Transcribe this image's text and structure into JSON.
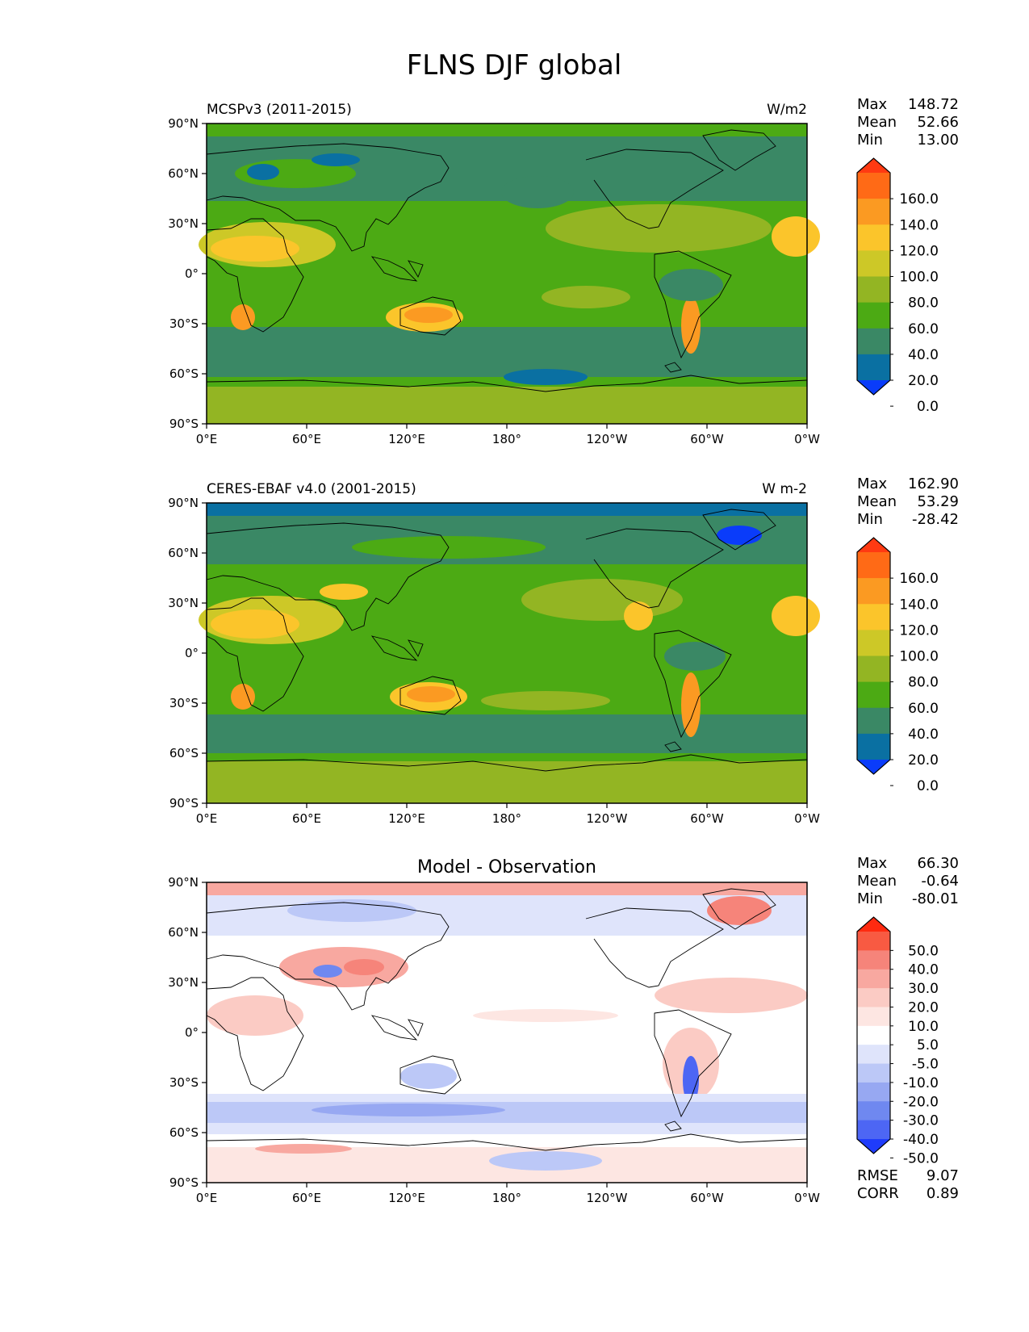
{
  "title": "FLNS DJF global",
  "axes": {
    "lat_ticks": [
      "90°N",
      "60°N",
      "30°N",
      "0°",
      "30°S",
      "60°S",
      "90°S"
    ],
    "lon_ticks": [
      "0°E",
      "60°E",
      "120°E",
      "180°",
      "120°W",
      "60°W",
      "0°W"
    ]
  },
  "panels": [
    {
      "left_title": "MCSPv3 (2011-2015)",
      "center_title": "",
      "units": "W/m2",
      "stats": [
        {
          "label": "Max",
          "value": "148.72"
        },
        {
          "label": "Mean",
          "value": "52.66"
        },
        {
          "label": "Min",
          "value": "13.00"
        }
      ],
      "colorbar": {
        "labels": [
          "160.0",
          "140.0",
          "120.0",
          "100.0",
          "80.0",
          "60.0",
          "40.0",
          "20.0",
          "0.0"
        ],
        "colors": [
          "#ff3a12",
          "#ff6a16",
          "#fb9a22",
          "#fbc52b",
          "#cdc827",
          "#93b523",
          "#4caa14",
          "#3a8865",
          "#0a70a2",
          "#0a3cfa"
        ]
      }
    },
    {
      "left_title": "CERES-EBAF v4.0 (2001-2015)",
      "center_title": "",
      "units": "W m-2",
      "stats": [
        {
          "label": "Max",
          "value": "162.90"
        },
        {
          "label": "Mean",
          "value": "53.29"
        },
        {
          "label": "Min",
          "value": "-28.42"
        }
      ],
      "colorbar": {
        "labels": [
          "160.0",
          "140.0",
          "120.0",
          "100.0",
          "80.0",
          "60.0",
          "40.0",
          "20.0",
          "0.0"
        ],
        "colors": [
          "#ff3a12",
          "#ff6a16",
          "#fb9a22",
          "#fbc52b",
          "#cdc827",
          "#93b523",
          "#4caa14",
          "#3a8865",
          "#0a70a2",
          "#0a3cfa"
        ]
      }
    },
    {
      "left_title": "",
      "center_title": "Model - Observation",
      "units": "",
      "stats": [
        {
          "label": "Max",
          "value": "66.30"
        },
        {
          "label": "Mean",
          "value": "-0.64"
        },
        {
          "label": "Min",
          "value": "-80.01"
        }
      ],
      "colorbar": {
        "labels": [
          "50.0",
          "40.0",
          "30.0",
          "20.0",
          "10.0",
          "5.0",
          "-5.0",
          "-10.0",
          "-20.0",
          "-30.0",
          "-40.0",
          "-50.0"
        ],
        "colors": [
          "#ff2a10",
          "#f85a42",
          "#f6847a",
          "#f8a8a0",
          "#fbcbc4",
          "#fde6e2",
          "#ffffff",
          "#dfe4fb",
          "#bcc8f7",
          "#97a8f2",
          "#6f88f0",
          "#4d66f4",
          "#1f3cfb"
        ]
      },
      "extra_stats": [
        {
          "label": "RMSE",
          "value": "9.07"
        },
        {
          "label": "CORR",
          "value": "0.89"
        }
      ]
    }
  ],
  "chart_data": {
    "type": "heatmap",
    "title": "FLNS DJF global",
    "variable": "FLNS",
    "season": "DJF",
    "xlim": [
      0,
      360
    ],
    "ylim": [
      -90,
      90
    ],
    "x_ticks": [
      0,
      60,
      120,
      180,
      240,
      300,
      360
    ],
    "y_ticks": [
      90,
      60,
      30,
      0,
      -30,
      -60,
      -90
    ],
    "colorbar_levels": [
      0,
      20,
      40,
      60,
      80,
      100,
      120,
      140,
      160
    ],
    "diff_colorbar_levels": [
      -50,
      -40,
      -30,
      -20,
      -10,
      -5,
      5,
      10,
      20,
      30,
      40,
      50
    ],
    "series": [
      {
        "name": "MCSPv3 (2011-2015)",
        "max": 148.72,
        "mean": 52.66,
        "min": 13.0
      },
      {
        "name": "CERES-EBAF v4.0 (2001-2015)",
        "max": 162.9,
        "mean": 53.29,
        "min": -28.42
      },
      {
        "name": "Model - Observation",
        "max": 66.3,
        "mean": -0.64,
        "min": -80.01,
        "rmse": 9.07,
        "corr": 0.89
      }
    ]
  }
}
